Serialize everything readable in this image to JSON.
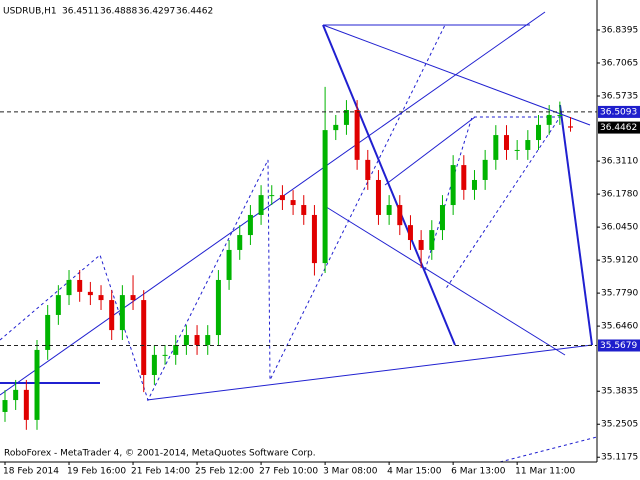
{
  "header": {
    "symbol": "USDRUB,H1"
  },
  "footer": "RoboForex - MetaTrader 4, © 2001-2014, MetaQuotes Software Corp.",
  "chart_data": {
    "type": "candlestick",
    "categories": [
      "18 Feb 2014",
      null,
      null,
      null,
      null,
      null,
      "19 Feb 16:00",
      null,
      null,
      null,
      null,
      null,
      "21 Feb 14:00",
      null,
      null,
      null,
      null,
      null,
      "25 Feb 12:00",
      null,
      null,
      null,
      null,
      null,
      "27 Feb 10:00",
      null,
      null,
      null,
      null,
      null,
      "3 Mar 08:00",
      null,
      null,
      null,
      null,
      null,
      "4 Mar 15:00",
      null,
      null,
      null,
      null,
      null,
      "6 Mar 13:00",
      null,
      null,
      null,
      null,
      null,
      "11 Mar 11:00",
      null,
      null,
      null,
      null,
      null
    ],
    "open": [
      35.3,
      35.348,
      35.389,
      35.268,
      35.55,
      35.691,
      35.771,
      35.832,
      35.784,
      35.771,
      35.751,
      35.63,
      35.771,
      35.751,
      35.449,
      35.53,
      35.53,
      35.57,
      35.61,
      35.57,
      35.61,
      35.832,
      35.953,
      36.013,
      36.094,
      36.174,
      36.174,
      36.154,
      36.134,
      36.094,
      35.9,
      36.436,
      36.457,
      36.517,
      36.316,
      36.235,
      36.094,
      36.134,
      36.053,
      35.993,
      35.953,
      36.033,
      36.134,
      36.295,
      36.195,
      36.235,
      36.316,
      36.416,
      36.356,
      36.356,
      36.396,
      36.457,
      36.497,
      36.4511
    ],
    "high": [
      35.388,
      35.429,
      35.429,
      35.59,
      35.731,
      35.811,
      35.872,
      35.872,
      35.824,
      35.811,
      35.791,
      35.811,
      35.851,
      35.791,
      35.57,
      35.57,
      35.61,
      35.65,
      35.65,
      35.65,
      35.872,
      35.993,
      36.053,
      36.134,
      36.214,
      36.214,
      36.214,
      36.194,
      36.174,
      36.134,
      36.61,
      36.497,
      36.557,
      36.557,
      36.356,
      36.275,
      36.174,
      36.174,
      36.093,
      36.033,
      36.073,
      36.174,
      36.335,
      36.335,
      36.275,
      36.356,
      36.456,
      36.456,
      36.396,
      36.436,
      36.497,
      36.537,
      36.551,
      36.4888
    ],
    "low": [
      35.26,
      35.308,
      35.228,
      35.228,
      35.51,
      35.651,
      35.731,
      35.744,
      35.731,
      35.711,
      35.59,
      35.59,
      35.711,
      35.38,
      35.409,
      35.49,
      35.49,
      35.53,
      35.53,
      35.53,
      35.57,
      35.792,
      35.913,
      35.973,
      36.054,
      36.134,
      36.114,
      36.094,
      36.054,
      35.85,
      35.86,
      36.396,
      36.417,
      36.276,
      36.195,
      36.054,
      36.054,
      36.013,
      35.953,
      35.88,
      35.913,
      35.993,
      36.094,
      36.155,
      36.155,
      36.195,
      36.276,
      36.316,
      36.316,
      36.316,
      36.356,
      36.417,
      36.457,
      36.4297
    ],
    "close": [
      35.348,
      35.389,
      35.268,
      35.55,
      35.691,
      35.771,
      35.832,
      35.784,
      35.771,
      35.751,
      35.63,
      35.771,
      35.751,
      35.449,
      35.53,
      35.53,
      35.57,
      35.61,
      35.57,
      35.61,
      35.832,
      35.953,
      36.013,
      36.094,
      36.174,
      36.174,
      36.154,
      36.134,
      36.094,
      35.9,
      36.436,
      36.457,
      36.517,
      36.316,
      36.235,
      36.094,
      36.134,
      36.053,
      35.993,
      35.953,
      36.033,
      36.134,
      36.295,
      36.195,
      36.235,
      36.316,
      36.416,
      36.356,
      36.356,
      36.396,
      36.457,
      36.497,
      36.497,
      36.4462
    ],
    "up_color": "#00b400",
    "down_color": "#e00000",
    "level_color": "#1e1ecc",
    "levels": [
      36.5093,
      35.5679
    ],
    "ylim": [
      35.0983,
      36.9604
    ],
    "yticks": [
      36.8395,
      36.7065,
      36.5735,
      {
        "value": 36.311,
        "label": "36.3110"
      },
      {
        "value": 36.178,
        "label": "36.1780"
      },
      {
        "value": 36.045,
        "label": "36.0450"
      },
      {
        "value": 35.912,
        "label": "35.9120"
      },
      {
        "value": 35.779,
        "label": "35.7790"
      },
      {
        "value": 35.646,
        "label": "35.6460"
      },
      35.3835,
      35.2505,
      35.1175
    ]
  }
}
